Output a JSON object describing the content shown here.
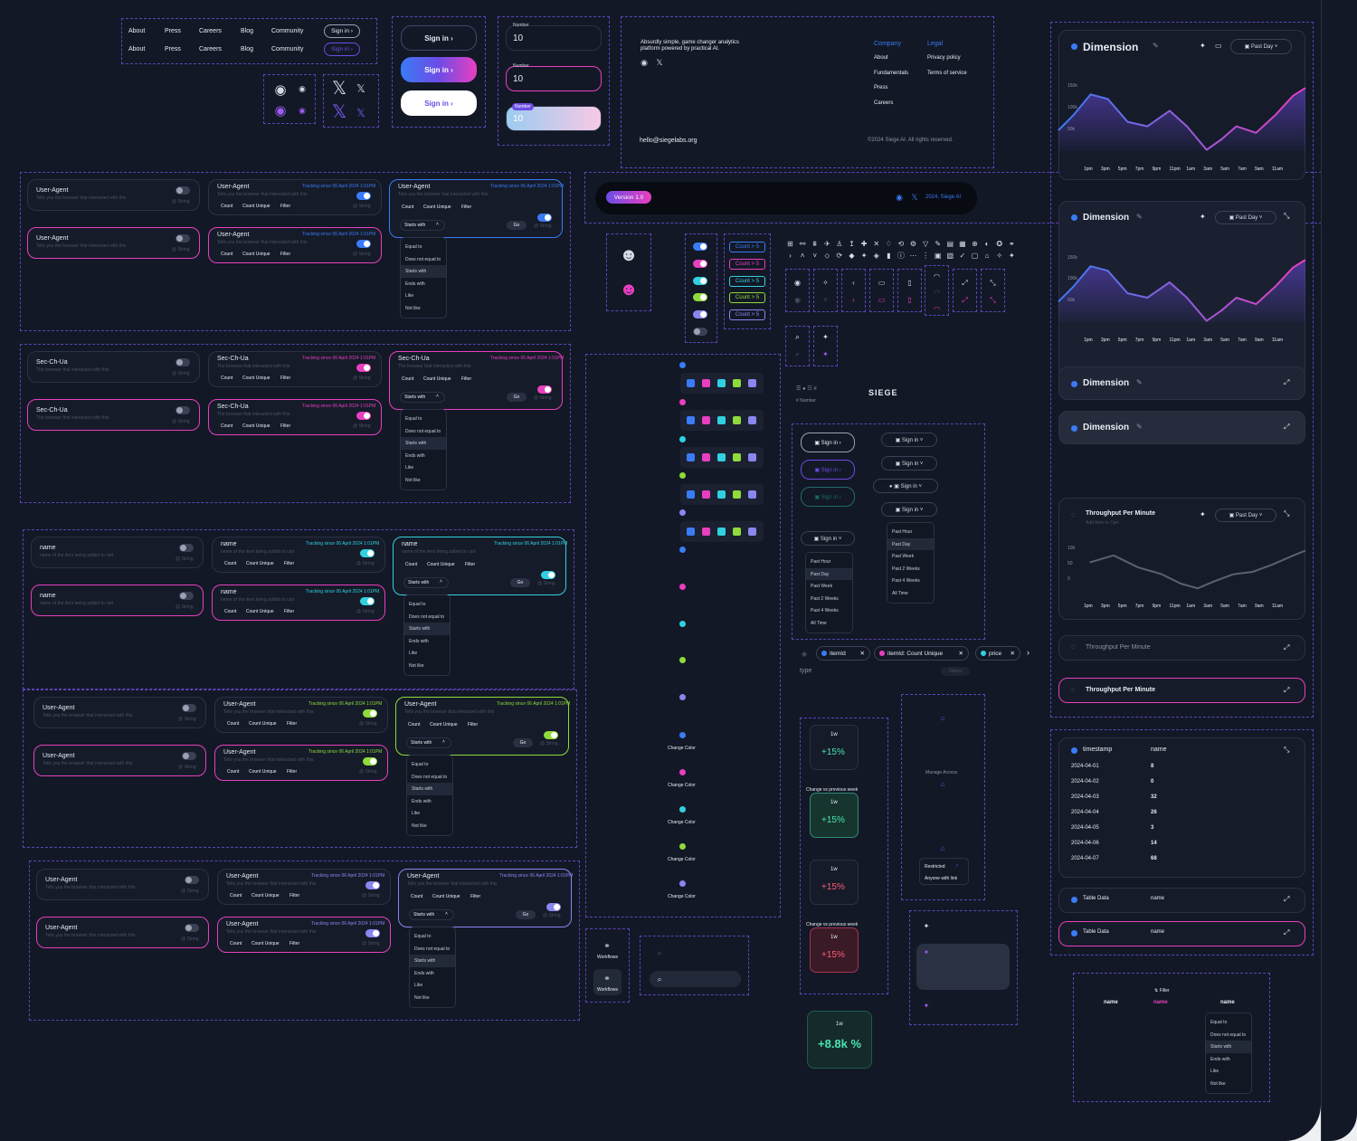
{
  "colors": {
    "bg": "#131826",
    "purple": "#6d4ce6",
    "pink": "#e83fbf",
    "cyan": "#31d0e0",
    "green": "#8fdb3b",
    "blue": "#3a7bf6",
    "lavender": "#8a86f0"
  },
  "nav": {
    "items": [
      "About",
      "Press",
      "Careers",
      "Blog",
      "Community"
    ],
    "signin": "Sign in ›"
  },
  "buttons": {
    "signin": "Sign in ›"
  },
  "numbers": {
    "label": "Number",
    "value": "10"
  },
  "footer": {
    "tagline1": "Absurdly simple, game changer analytics",
    "tagline2": "platform powered by practical AI.",
    "company": "Company",
    "company_items": [
      "About",
      "Fundamentals",
      "Press",
      "Careers"
    ],
    "legal": "Legal",
    "legal_items": [
      "Privacy policy",
      "Terms of service"
    ],
    "email": "hello@siegelabs.org",
    "copyright": "©2024 Siege AI. All rights reserved."
  },
  "version": {
    "badge": "Version 1.0",
    "right": "2024, Siege AI"
  },
  "prop": {
    "sub": "Tells you the browser that interacted with this",
    "tracking": "Tracking since 06 April 2024 1:01PM",
    "type": "@ String",
    "count": "Count",
    "unique": "Count Unique",
    "filter": "Filter",
    "starts": "Starts with",
    "go": "Go",
    "name_sub": "name of the item being added to cart",
    "ch_sub": "The browser that interacted with this"
  },
  "groups": [
    {
      "title": "User-Agent"
    },
    {
      "title": "Sec-Ch-Ua"
    },
    {
      "title": "name"
    },
    {
      "title": "User-Agent"
    },
    {
      "title": "User-Agent"
    }
  ],
  "filter_menu": [
    "Equal to",
    "Does not equal to",
    "Starts with",
    "Ends with",
    "Like",
    "Not like"
  ],
  "count_chip": "Count > 5",
  "change_color": "Change Color",
  "number_label": "# Number",
  "brand": "SIEGE",
  "signin_dd": "Sign in",
  "time_menu": [
    "Past Hour",
    "Past Day",
    "Past Week",
    "Past 2 Weeks",
    "Past 4 Weeks",
    "All Time"
  ],
  "chips": [
    "itemId",
    "itemId: Count Unique",
    "price"
  ],
  "type_label": "type",
  "object_label": "Object",
  "stats": {
    "period": "1w",
    "up": "+15%",
    "change": "Change vs previous week",
    "big": "+8.8k %"
  },
  "access": {
    "manage": "Manage Access",
    "restricted": "Restricted",
    "anyone": "Anyone with link"
  },
  "workflows": "Workflows",
  "dimension": {
    "title": "Dimension",
    "range": "Past Day",
    "yticks": [
      "150k",
      "100k",
      "50k"
    ],
    "xticks": [
      "1pm",
      "3pm",
      "5pm",
      "7pm",
      "9pm",
      "11pm",
      "1am",
      "3am",
      "5am",
      "7am",
      "9am",
      "11am"
    ]
  },
  "throughput": {
    "title": "Throughput Per Minute",
    "sub": "Add Item to Cart",
    "range": "Past Day",
    "yticks": [
      "100",
      "50",
      "0"
    ]
  },
  "table": {
    "h1": "timestamp",
    "h2": "name",
    "rows": [
      [
        "2024-04-01",
        "8"
      ],
      [
        "2024-04-02",
        "0"
      ],
      [
        "2024-04-03",
        "32"
      ],
      [
        "2024-04-04",
        "26"
      ],
      [
        "2024-04-05",
        "3"
      ],
      [
        "2024-04-06",
        "14"
      ],
      [
        "2024-04-07",
        "68"
      ]
    ],
    "alt": "Table Data",
    "alt2": "name"
  },
  "bottomtable": {
    "filter": "Filter",
    "h": [
      "name",
      "name",
      "name"
    ]
  }
}
